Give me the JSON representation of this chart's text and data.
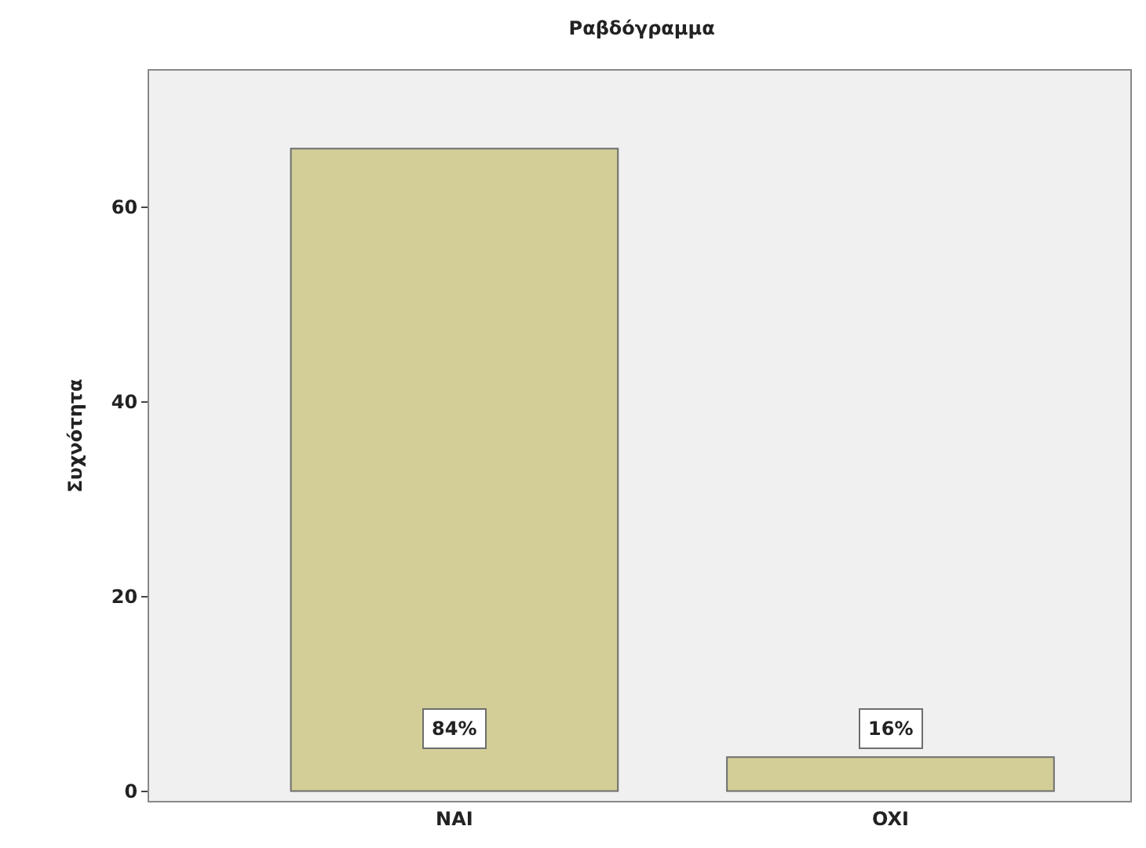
{
  "chart_data": {
    "type": "bar",
    "title": "Ραβδόγραμμα",
    "ylabel": "Συχνότητα",
    "categories": [
      "NAI",
      "OXI"
    ],
    "values": [
      66,
      3.5
    ],
    "annotations": [
      "84%",
      "16%"
    ],
    "color": "#d3ce98",
    "ylim": [
      -1,
      74
    ],
    "yticks": [
      0,
      20,
      40,
      60
    ],
    "grid": false,
    "legend": false
  }
}
